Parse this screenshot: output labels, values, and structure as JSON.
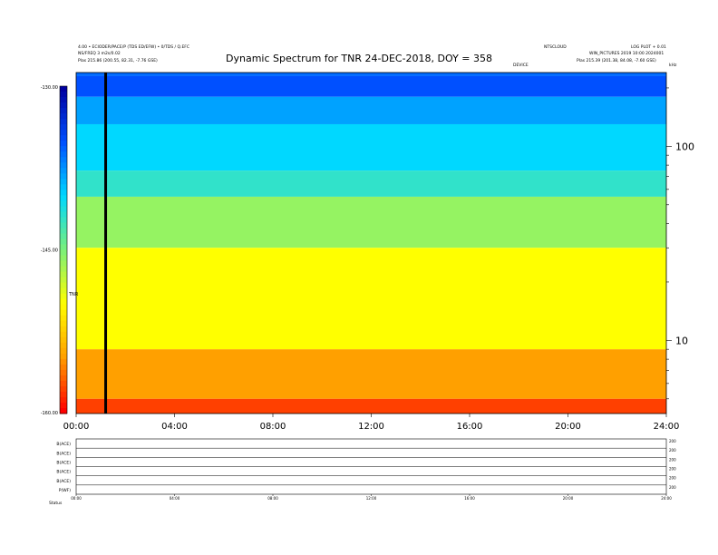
{
  "header": {
    "title": "Dynamic Spectrum for TNR 24-DEC-2018, DOY = 358",
    "left_line1": "4.00 • ECIODER/PACE/P (TDS ED/EFW) • 0/TDS / Q.EFC",
    "left_line2": "NS/FREQ 3 m2s/0.02",
    "left_line3": "Plas    215.86 (200.55, 82.31, -7.76 GSE)",
    "right_line1": "Plas    215.39 (201.38, 84.08, -7.60 GSE)",
    "mid_top": "NTSCLOUD",
    "mid_right": "LOG PLOT + 0.01",
    "mid_label": "DEVICE",
    "right_mid": "WIN_PICTURES 2019 10:00 2024001"
  },
  "chart_data": [
    {
      "type": "heatmap",
      "title": "Dynamic Spectrum for TNR 24-DEC-2018, DOY = 358",
      "x_ticks": [
        "00:00",
        "04:00",
        "08:00",
        "12:00",
        "16:00",
        "20:00",
        "24:00"
      ],
      "x_range_hours": [
        0,
        24
      ],
      "y_scale": "log",
      "y_right_ticks": [
        10,
        100
      ],
      "y_right_label": "kHz",
      "colorbar": {
        "label": "TNR",
        "ticks": [
          "-130.00",
          "-145.00",
          "-160.00"
        ],
        "range_db": [
          -160,
          -130
        ],
        "colors": [
          "#0000a0",
          "#0050ff",
          "#00d8ff",
          "#7af07a",
          "#ffff00",
          "#ffa000",
          "#ff0000"
        ]
      },
      "bands": [
        {
          "freq_from": 230,
          "freq_to": 180,
          "db": -135
        },
        {
          "freq_from": 180,
          "freq_to": 130,
          "db": -138
        },
        {
          "freq_from": 130,
          "freq_to": 75,
          "db": -140
        },
        {
          "freq_from": 75,
          "freq_to": 55,
          "db": -142
        },
        {
          "freq_from": 55,
          "freq_to": 30,
          "db": -146
        },
        {
          "freq_from": 30,
          "freq_to": 9,
          "db": -150
        },
        {
          "freq_from": 9,
          "freq_to": 5,
          "db": -155
        }
      ],
      "marker_time_hour": 1.2
    },
    {
      "type": "line",
      "panels": [
        "B(ACE)",
        "B(ACE)",
        "B(ACE)",
        "B(ACE)",
        "B(ACE)",
        "P(WF)"
      ],
      "right_tick": "200",
      "x_ticks": [
        "00:00",
        "04:00",
        "08:00",
        "12:00",
        "16:00",
        "20:00",
        "24:00"
      ],
      "footer_label": "Status"
    }
  ]
}
